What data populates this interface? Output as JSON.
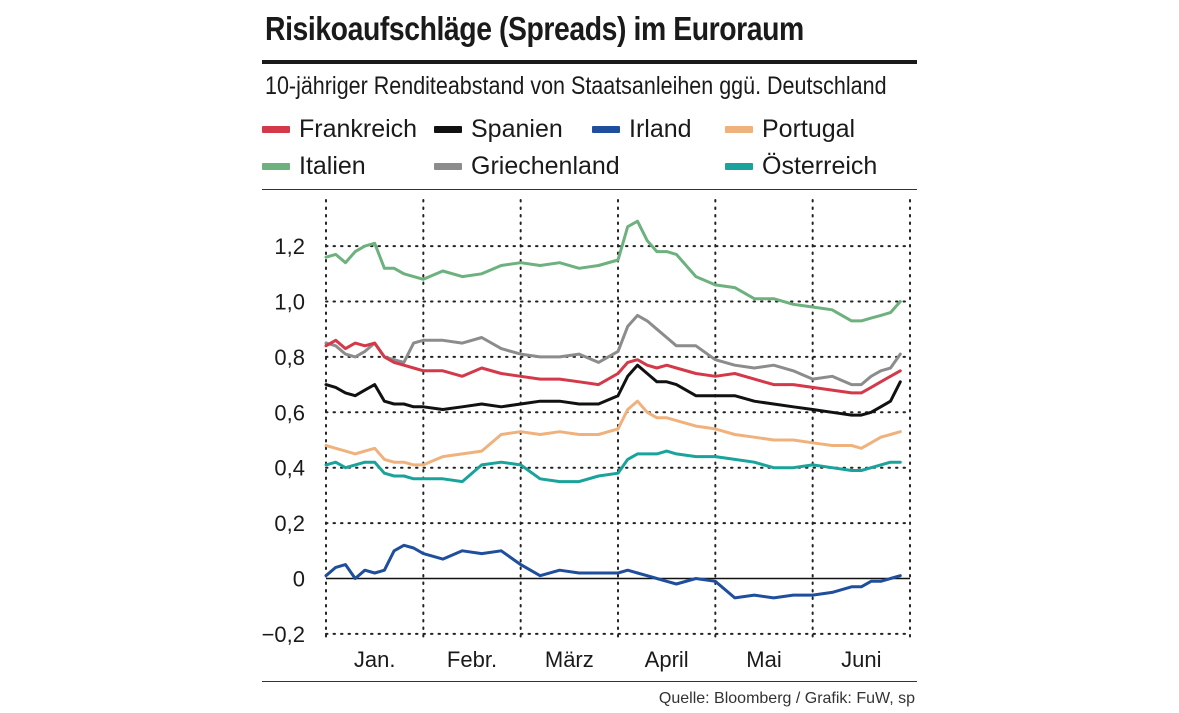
{
  "chart_data": {
    "type": "line",
    "title": "Risikoaufschläge (Spreads) im Euroraum",
    "subtitle": "10-jähriger Renditeabstand von Staatsanleihen ggü. Deutschland",
    "xlabel": "",
    "ylabel": "",
    "ylim": [
      -0.2,
      1.35
    ],
    "yticks": [
      -0.2,
      0,
      0.2,
      0.4,
      0.6,
      0.8,
      1.0,
      1.2
    ],
    "ytick_labels": [
      "−0,2",
      "0",
      "0,2",
      "0,4",
      "0,6",
      "0,8",
      "1,0",
      "1,2"
    ],
    "x_range": [
      0,
      6
    ],
    "month_labels": [
      "Jan.",
      "Febr.",
      "März",
      "April",
      "Mai",
      "Juni"
    ],
    "grid": true,
    "source": "Quelle: Bloomberg / Grafik: FuW, sp",
    "series": [
      {
        "name": "Italien",
        "color": "#6db17e",
        "x": [
          0,
          0.1,
          0.2,
          0.3,
          0.4,
          0.5,
          0.6,
          0.7,
          0.8,
          0.9,
          1.0,
          1.2,
          1.4,
          1.6,
          1.8,
          2.0,
          2.2,
          2.4,
          2.6,
          2.8,
          3.0,
          3.1,
          3.2,
          3.3,
          3.4,
          3.5,
          3.6,
          3.8,
          4.0,
          4.2,
          4.4,
          4.6,
          4.8,
          5.0,
          5.2,
          5.4,
          5.5,
          5.6,
          5.7,
          5.8,
          5.9
        ],
        "values": [
          1.16,
          1.17,
          1.14,
          1.18,
          1.2,
          1.21,
          1.12,
          1.12,
          1.1,
          1.09,
          1.08,
          1.11,
          1.09,
          1.1,
          1.13,
          1.14,
          1.13,
          1.14,
          1.12,
          1.13,
          1.15,
          1.27,
          1.29,
          1.22,
          1.18,
          1.18,
          1.17,
          1.09,
          1.06,
          1.05,
          1.01,
          1.01,
          0.99,
          0.98,
          0.97,
          0.93,
          0.93,
          0.94,
          0.95,
          0.96,
          1.0
        ]
      },
      {
        "name": "Griechenland",
        "color": "#8c8c8c",
        "x": [
          0,
          0.1,
          0.2,
          0.3,
          0.4,
          0.5,
          0.6,
          0.7,
          0.8,
          0.9,
          1.0,
          1.2,
          1.4,
          1.6,
          1.8,
          2.0,
          2.2,
          2.4,
          2.6,
          2.8,
          3.0,
          3.1,
          3.2,
          3.3,
          3.4,
          3.5,
          3.6,
          3.8,
          4.0,
          4.2,
          4.4,
          4.6,
          4.8,
          5.0,
          5.2,
          5.4,
          5.5,
          5.6,
          5.7,
          5.8,
          5.9
        ],
        "values": [
          0.85,
          0.84,
          0.81,
          0.8,
          0.82,
          0.85,
          0.8,
          0.79,
          0.78,
          0.85,
          0.86,
          0.86,
          0.85,
          0.87,
          0.83,
          0.81,
          0.8,
          0.8,
          0.81,
          0.78,
          0.82,
          0.91,
          0.95,
          0.93,
          0.9,
          0.87,
          0.84,
          0.84,
          0.79,
          0.77,
          0.76,
          0.77,
          0.75,
          0.72,
          0.73,
          0.7,
          0.7,
          0.73,
          0.75,
          0.76,
          0.81
        ]
      },
      {
        "name": "Frankreich",
        "color": "#d4394a",
        "x": [
          0,
          0.1,
          0.2,
          0.3,
          0.4,
          0.5,
          0.6,
          0.7,
          0.8,
          0.9,
          1.0,
          1.2,
          1.4,
          1.6,
          1.8,
          2.0,
          2.2,
          2.4,
          2.6,
          2.8,
          3.0,
          3.1,
          3.2,
          3.3,
          3.4,
          3.5,
          3.6,
          3.8,
          4.0,
          4.2,
          4.4,
          4.6,
          4.8,
          5.0,
          5.2,
          5.4,
          5.5,
          5.6,
          5.7,
          5.8,
          5.9
        ],
        "values": [
          0.84,
          0.86,
          0.83,
          0.85,
          0.84,
          0.85,
          0.8,
          0.78,
          0.77,
          0.76,
          0.75,
          0.75,
          0.73,
          0.76,
          0.74,
          0.73,
          0.72,
          0.72,
          0.71,
          0.7,
          0.74,
          0.78,
          0.79,
          0.77,
          0.76,
          0.77,
          0.76,
          0.74,
          0.73,
          0.74,
          0.72,
          0.7,
          0.7,
          0.69,
          0.68,
          0.67,
          0.67,
          0.69,
          0.71,
          0.73,
          0.75
        ]
      },
      {
        "name": "Spanien",
        "color": "#111111",
        "x": [
          0,
          0.1,
          0.2,
          0.3,
          0.4,
          0.5,
          0.6,
          0.7,
          0.8,
          0.9,
          1.0,
          1.2,
          1.4,
          1.6,
          1.8,
          2.0,
          2.2,
          2.4,
          2.6,
          2.8,
          3.0,
          3.1,
          3.2,
          3.3,
          3.4,
          3.5,
          3.6,
          3.8,
          4.0,
          4.2,
          4.4,
          4.6,
          4.8,
          5.0,
          5.2,
          5.4,
          5.5,
          5.6,
          5.7,
          5.8,
          5.9
        ],
        "values": [
          0.7,
          0.69,
          0.67,
          0.66,
          0.68,
          0.7,
          0.64,
          0.63,
          0.63,
          0.62,
          0.62,
          0.61,
          0.62,
          0.63,
          0.62,
          0.63,
          0.64,
          0.64,
          0.63,
          0.63,
          0.66,
          0.73,
          0.77,
          0.74,
          0.71,
          0.71,
          0.7,
          0.66,
          0.66,
          0.66,
          0.64,
          0.63,
          0.62,
          0.61,
          0.6,
          0.59,
          0.59,
          0.6,
          0.62,
          0.64,
          0.71
        ]
      },
      {
        "name": "Portugal",
        "color": "#f0b27d",
        "x": [
          0,
          0.1,
          0.2,
          0.3,
          0.4,
          0.5,
          0.6,
          0.7,
          0.8,
          0.9,
          1.0,
          1.2,
          1.4,
          1.6,
          1.8,
          2.0,
          2.2,
          2.4,
          2.6,
          2.8,
          3.0,
          3.1,
          3.2,
          3.3,
          3.4,
          3.5,
          3.6,
          3.8,
          4.0,
          4.2,
          4.4,
          4.6,
          4.8,
          5.0,
          5.2,
          5.4,
          5.5,
          5.6,
          5.7,
          5.8,
          5.9
        ],
        "values": [
          0.48,
          0.47,
          0.46,
          0.45,
          0.46,
          0.47,
          0.43,
          0.42,
          0.42,
          0.41,
          0.41,
          0.44,
          0.45,
          0.46,
          0.52,
          0.53,
          0.52,
          0.53,
          0.52,
          0.52,
          0.54,
          0.61,
          0.64,
          0.6,
          0.58,
          0.58,
          0.57,
          0.55,
          0.54,
          0.52,
          0.51,
          0.5,
          0.5,
          0.49,
          0.48,
          0.48,
          0.47,
          0.49,
          0.51,
          0.52,
          0.53
        ]
      },
      {
        "name": "Österreich",
        "color": "#1aa39a",
        "x": [
          0,
          0.1,
          0.2,
          0.3,
          0.4,
          0.5,
          0.6,
          0.7,
          0.8,
          0.9,
          1.0,
          1.2,
          1.4,
          1.6,
          1.8,
          2.0,
          2.2,
          2.4,
          2.6,
          2.8,
          3.0,
          3.1,
          3.2,
          3.3,
          3.4,
          3.5,
          3.6,
          3.8,
          4.0,
          4.2,
          4.4,
          4.6,
          4.8,
          5.0,
          5.2,
          5.4,
          5.5,
          5.6,
          5.7,
          5.8,
          5.9
        ],
        "values": [
          0.41,
          0.42,
          0.4,
          0.41,
          0.42,
          0.42,
          0.38,
          0.37,
          0.37,
          0.36,
          0.36,
          0.36,
          0.35,
          0.41,
          0.42,
          0.41,
          0.36,
          0.35,
          0.35,
          0.37,
          0.38,
          0.43,
          0.45,
          0.45,
          0.45,
          0.46,
          0.45,
          0.44,
          0.44,
          0.43,
          0.42,
          0.4,
          0.4,
          0.41,
          0.4,
          0.39,
          0.39,
          0.4,
          0.41,
          0.42,
          0.42
        ]
      },
      {
        "name": "Irland",
        "color": "#1f4e9c",
        "x": [
          0,
          0.1,
          0.2,
          0.3,
          0.4,
          0.5,
          0.6,
          0.7,
          0.8,
          0.9,
          1.0,
          1.2,
          1.4,
          1.6,
          1.8,
          2.0,
          2.2,
          2.4,
          2.6,
          2.8,
          3.0,
          3.1,
          3.2,
          3.3,
          3.4,
          3.5,
          3.6,
          3.8,
          4.0,
          4.2,
          4.4,
          4.6,
          4.8,
          5.0,
          5.2,
          5.4,
          5.5,
          5.6,
          5.7,
          5.8,
          5.9
        ],
        "values": [
          0.01,
          0.04,
          0.05,
          0.0,
          0.03,
          0.02,
          0.03,
          0.1,
          0.12,
          0.11,
          0.09,
          0.07,
          0.1,
          0.09,
          0.1,
          0.05,
          0.01,
          0.03,
          0.02,
          0.02,
          0.02,
          0.03,
          0.02,
          0.01,
          0.0,
          -0.01,
          -0.02,
          0.0,
          -0.01,
          -0.07,
          -0.06,
          -0.07,
          -0.06,
          -0.06,
          -0.05,
          -0.03,
          -0.03,
          -0.01,
          -0.01,
          0.0,
          0.01
        ]
      }
    ]
  },
  "legend_order": [
    "Frankreich",
    "Spanien",
    "Irland",
    "Portugal",
    "Italien",
    "Griechenland",
    "Österreich"
  ]
}
